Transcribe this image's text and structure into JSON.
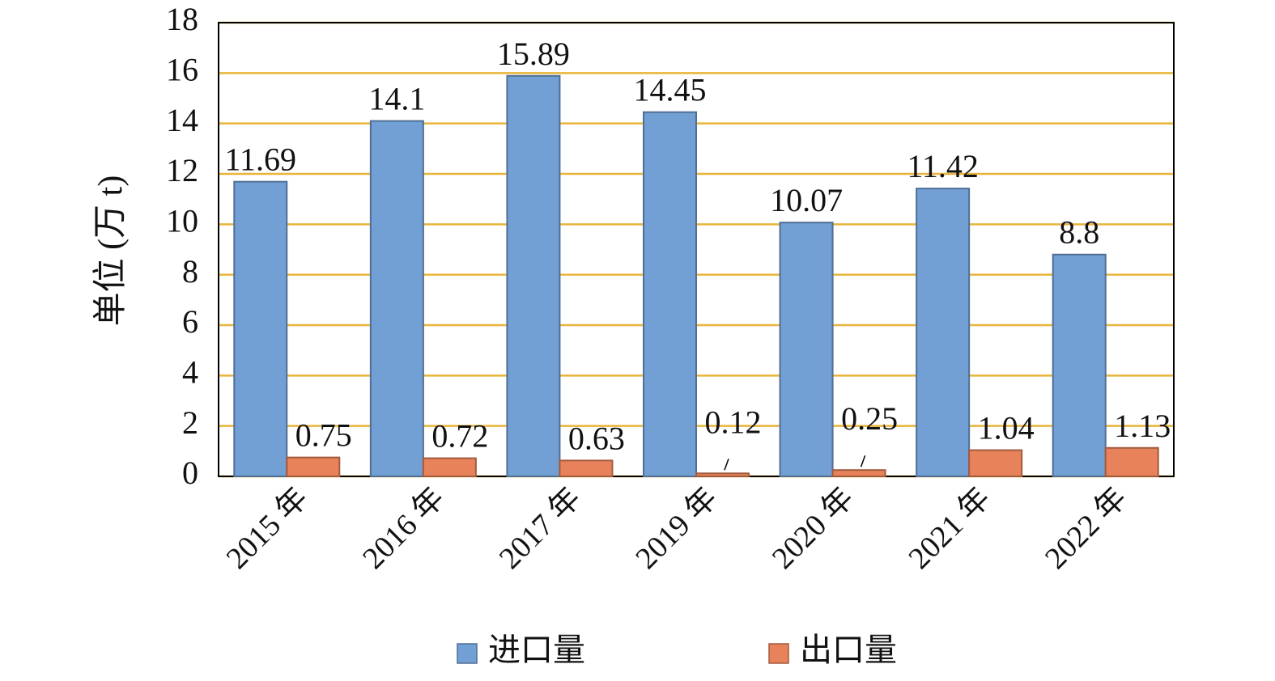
{
  "chart_data": {
    "type": "bar",
    "y_label": "单位 (万 t)",
    "categories": [
      "2015 年",
      "2016 年",
      "2017 年",
      "2019 年",
      "2020 年",
      "2021 年",
      "2022 年"
    ],
    "series": [
      {
        "name": "进口量",
        "color": "#729fd4",
        "values": [
          11.69,
          14.1,
          15.89,
          14.45,
          10.07,
          11.42,
          8.8
        ]
      },
      {
        "name": "出口量",
        "color": "#e8825a",
        "values": [
          0.75,
          0.72,
          0.63,
          0.12,
          0.25,
          1.04,
          1.13
        ]
      }
    ],
    "ylim": [
      0,
      18
    ],
    "yticks": [
      0,
      2,
      4,
      6,
      8,
      10,
      12,
      14,
      16,
      18
    ],
    "grid": true,
    "legend": "bottom"
  }
}
